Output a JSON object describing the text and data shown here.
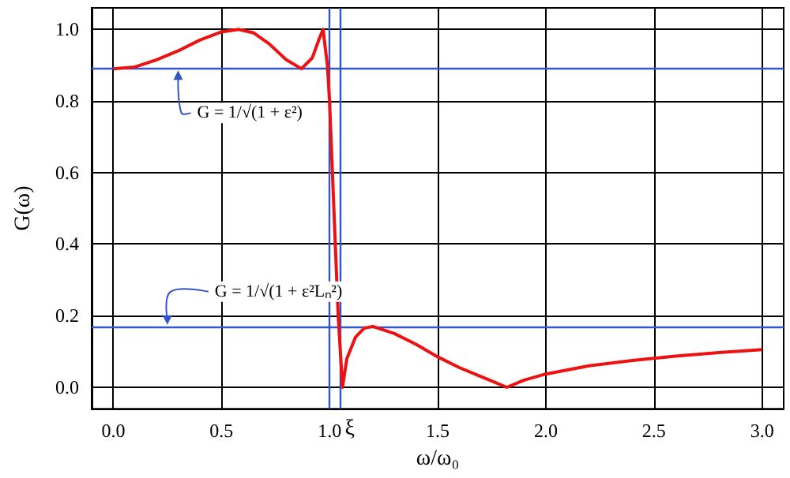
{
  "chart_data": {
    "type": "line",
    "xlabel": "ω/ω₀",
    "ylabel": "G(ω)",
    "x": [
      0,
      0.1,
      0.2,
      0.3,
      0.4,
      0.5,
      0.58,
      0.65,
      0.72,
      0.8,
      0.87,
      0.92,
      0.95,
      0.97,
      0.99,
      1.0,
      1.02,
      1.04,
      1.06,
      1.08,
      1.12,
      1.16,
      1.2,
      1.3,
      1.4,
      1.5,
      1.6,
      1.7,
      1.82,
      1.9,
      2.0,
      2.2,
      2.4,
      2.6,
      2.8,
      3.0
    ],
    "series": [
      {
        "color": "#ee1111",
        "values": [
          0.89,
          0.895,
          0.915,
          0.94,
          0.97,
          0.993,
          1.0,
          0.99,
          0.96,
          0.915,
          0.89,
          0.92,
          0.97,
          1.0,
          0.9,
          0.8,
          0.5,
          0.2,
          0,
          0.08,
          0.14,
          0.165,
          0.17,
          0.15,
          0.12,
          0.085,
          0.055,
          0.03,
          0,
          0.02,
          0.037,
          0.06,
          0.075,
          0.087,
          0.097,
          0.105
        ]
      }
    ],
    "xlim": [
      -0.1,
      3.1
    ],
    "xticks": [
      {
        "value": 0,
        "label": "0.0"
      },
      0.5,
      {
        "value": 1,
        "label": "1.0"
      },
      1.5,
      {
        "value": 2,
        "label": "2.0"
      },
      2.5,
      {
        "value": 3,
        "label": "3.0"
      }
    ],
    "ylim": [
      -0.06,
      1.06
    ],
    "yticks": [
      {
        "value": 0,
        "label": "0.0"
      },
      0.2,
      0.4,
      0.6,
      0.8,
      {
        "value": 1,
        "label": "1.0"
      }
    ],
    "ref_lines": [
      {
        "axis": "y",
        "value": 0.89,
        "color": "#3355cc"
      },
      {
        "axis": "y",
        "value": 0.17,
        "color": "#3355cc"
      },
      {
        "axis": "x",
        "value": 1.0,
        "color": "#3355cc"
      },
      {
        "axis": "x",
        "value": 1.047,
        "label": "ξ",
        "color": "#3355cc"
      }
    ],
    "annotations": [
      {
        "text": "G = 1/√(1 + ε²)",
        "x": 0.3,
        "y": 0.89
      },
      {
        "text": "G = 1/√(1 + ε²Lₙ²)",
        "x": 0.25,
        "y": 0.17
      }
    ],
    "grid": true,
    "marker": "none",
    "line_style": "solid"
  }
}
